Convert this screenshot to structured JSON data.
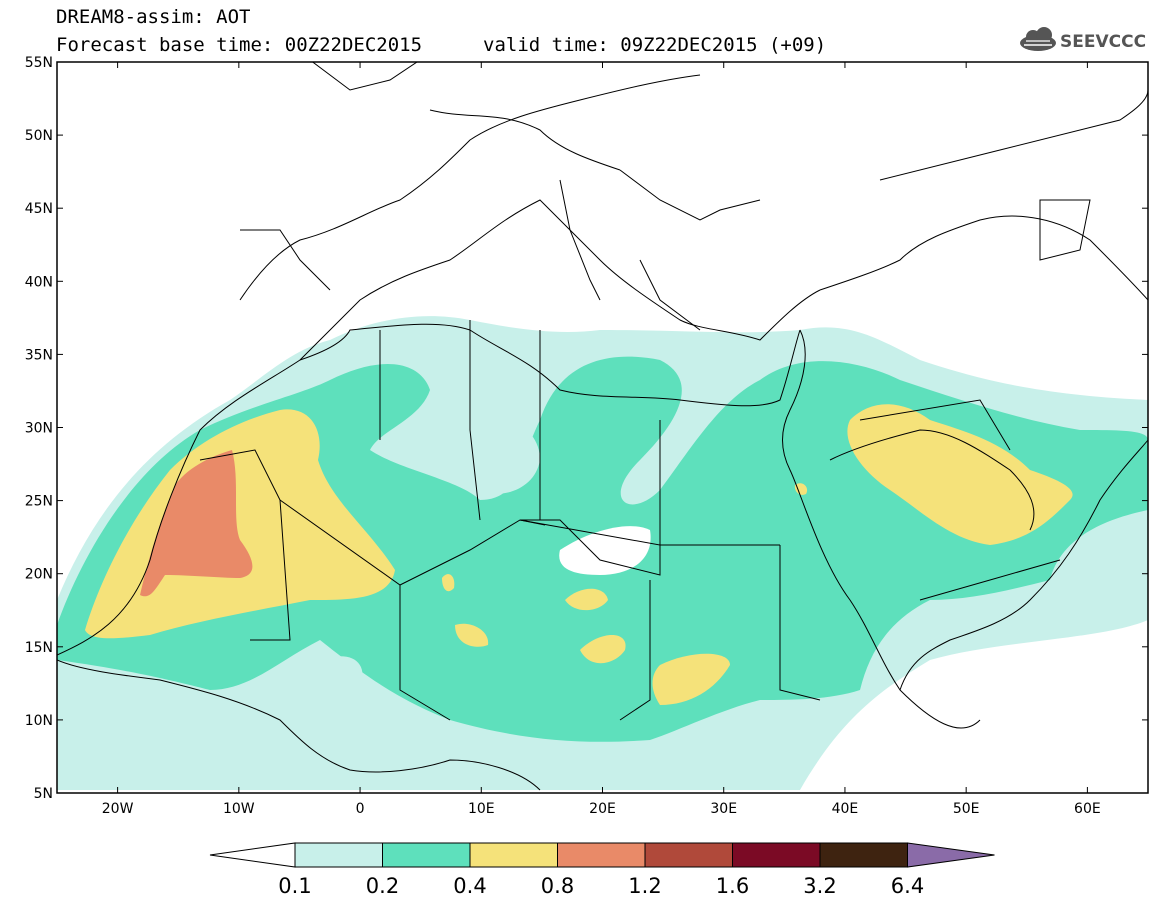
{
  "header": {
    "title_line1": "DREAM8-assim: AOT",
    "title_line2": "Forecast base time: 00Z22DEC2015",
    "valid_time": "valid time: 09Z22DEC2015 (+09)",
    "logo_text": "SEEVCCC",
    "logo_icon": "cloud-icon"
  },
  "map": {
    "lat_labels": [
      "55N",
      "50N",
      "45N",
      "40N",
      "35N",
      "30N",
      "25N",
      "20N",
      "15N",
      "10N",
      "5N"
    ],
    "lon_labels": [
      "20W",
      "10W",
      "0",
      "10E",
      "20E",
      "30E",
      "40E",
      "50E",
      "60E"
    ],
    "extent": {
      "lon": [
        -25,
        65
      ],
      "lat": [
        5,
        55
      ]
    }
  },
  "colorbar": {
    "labels": [
      "0.1",
      "0.2",
      "0.4",
      "0.8",
      "1.2",
      "1.6",
      "3.2",
      "6.4"
    ],
    "colors": [
      "#ffffff",
      "#c8f0ea",
      "#5ee0bc",
      "#f5e27a",
      "#e98a68",
      "#b0493a",
      "#7b0a25",
      "#3e2310",
      "#8a6ba8"
    ]
  }
}
